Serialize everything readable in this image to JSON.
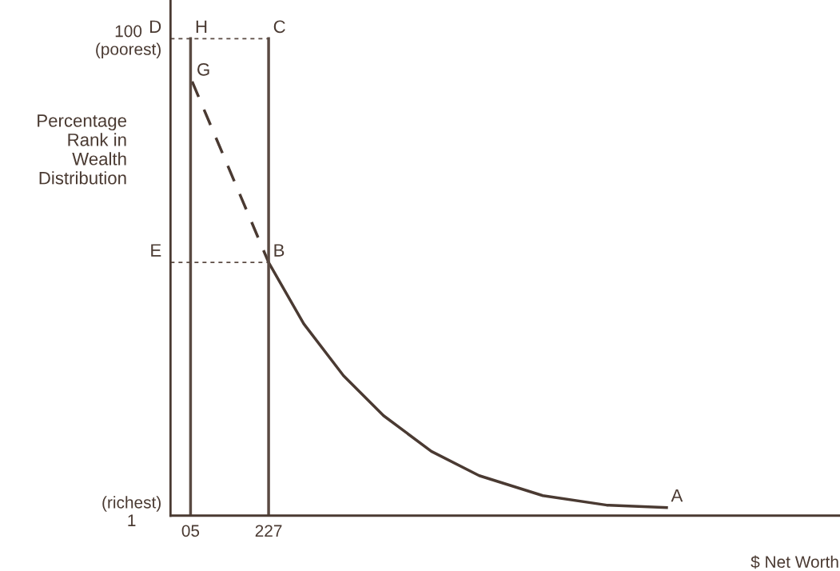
{
  "chart_data": {
    "type": "line",
    "ylabel": "Percentage\nRank in\nWealth\nDistribution",
    "xlabel": "$ Net Worth",
    "xlim": [
      -52,
      1850
    ],
    "ylim": [
      -0.2,
      108
    ],
    "xticks": [
      {
        "value": 5,
        "label": "05"
      },
      227
    ],
    "yticks": [
      {
        "value": 1,
        "label": "(richest)\n1"
      },
      {
        "value": 100,
        "label": "100\n(poorest)"
      }
    ],
    "grid": false,
    "legend": false,
    "marker": "none",
    "series": [
      {
        "color": "#4a3a32",
        "line_style": "solid",
        "x": [
          227,
          327,
          440,
          554,
          690,
          826,
          1007,
          1189,
          1359
        ],
        "values": [
          53,
          40.1,
          29.2,
          20.8,
          13.3,
          8.2,
          4.0,
          2.0,
          1.5
        ]
      },
      {
        "color": "#4a3a32",
        "line_style": "dashed",
        "x": [
          9.5,
          227
        ],
        "values": [
          91,
          53
        ]
      },
      {
        "color": "#5a4a42",
        "line_style": "solid",
        "x": [
          5,
          5
        ],
        "values": [
          -0.2,
          100
        ]
      },
      {
        "color": "#5a4a42",
        "line_style": "solid",
        "x": [
          227,
          227
        ],
        "values": [
          -0.2,
          100
        ]
      },
      {
        "color": "#5a4a42",
        "line_style": "dotted",
        "x": [
          -52,
          227
        ],
        "values": [
          100,
          100
        ]
      },
      {
        "color": "#5a4a42",
        "line_style": "dotted",
        "x": [
          -52,
          227
        ],
        "values": [
          53,
          53
        ]
      }
    ],
    "annotations": [
      {
        "text": "D",
        "x": -52,
        "y": 100
      },
      {
        "text": "H",
        "x": 5,
        "y": 100
      },
      {
        "text": "C",
        "x": 227,
        "y": 100
      },
      {
        "text": "G",
        "x": 9.5,
        "y": 91
      },
      {
        "text": "B",
        "x": 227,
        "y": 53
      },
      {
        "text": "E",
        "x": -52,
        "y": 53
      },
      {
        "text": "A",
        "x": 1359,
        "y": 1.5
      }
    ]
  }
}
